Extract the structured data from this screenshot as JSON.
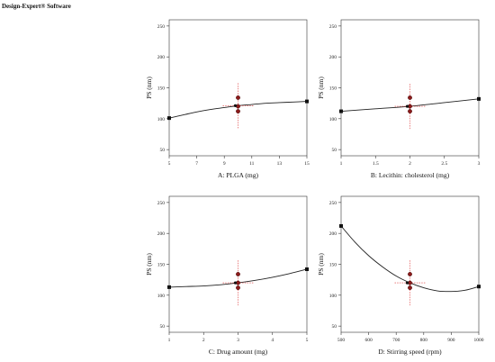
{
  "software_label": "Design-Expert® Software",
  "chart_data": [
    {
      "type": "line",
      "xlabel": "A: PLGA (mg)",
      "ylabel": "PS (nm)",
      "xlim": [
        5,
        15
      ],
      "ylim": [
        40,
        260
      ],
      "xticks": [
        5,
        7,
        9,
        11,
        13,
        15
      ],
      "yticks": [
        50,
        100,
        150,
        200,
        250
      ],
      "curve": {
        "x": [
          5,
          6,
          7,
          8,
          9,
          10,
          11,
          12,
          13,
          14,
          15
        ],
        "y": [
          101,
          106,
          111,
          115,
          118,
          121,
          123,
          125,
          126,
          127,
          128
        ]
      },
      "design_points": {
        "x": [
          10,
          10,
          10
        ],
        "y": [
          134,
          120,
          112
        ]
      },
      "center_point": {
        "x": 10,
        "y": 121
      },
      "endpoints": {
        "x": [
          5,
          15
        ],
        "y": [
          101,
          128
        ]
      }
    },
    {
      "type": "line",
      "xlabel": "B: Lecithin: cholesterol  (mg)",
      "ylabel": "PS (nm)",
      "xlim": [
        1,
        3
      ],
      "ylim": [
        40,
        260
      ],
      "xticks": [
        1,
        1.5,
        2,
        2.5,
        3
      ],
      "yticks": [
        50,
        100,
        150,
        200,
        250
      ],
      "curve": {
        "x": [
          1,
          1.5,
          2,
          2.5,
          3
        ],
        "y": [
          112,
          116,
          120,
          126,
          132
        ]
      },
      "design_points": {
        "x": [
          2,
          2,
          2
        ],
        "y": [
          134,
          120,
          112
        ]
      },
      "center_point": {
        "x": 2,
        "y": 120
      },
      "endpoints": {
        "x": [
          1,
          3
        ],
        "y": [
          112,
          132
        ]
      }
    },
    {
      "type": "line",
      "xlabel": "C: Drug amount (mg)",
      "ylabel": "PS (nm)",
      "xlim": [
        1,
        5
      ],
      "ylim": [
        40,
        260
      ],
      "xticks": [
        1,
        2,
        3,
        4,
        5
      ],
      "yticks": [
        50,
        100,
        150,
        200,
        250
      ],
      "curve": {
        "x": [
          1,
          1.5,
          2,
          2.5,
          3,
          3.5,
          4,
          4.5,
          5
        ],
        "y": [
          113,
          114,
          115,
          117,
          120,
          124,
          129,
          135,
          142
        ]
      },
      "design_points": {
        "x": [
          3,
          3,
          3
        ],
        "y": [
          134,
          120,
          112
        ]
      },
      "center_point": {
        "x": 3,
        "y": 120
      },
      "endpoints": {
        "x": [
          1,
          5
        ],
        "y": [
          113,
          142
        ]
      }
    },
    {
      "type": "line",
      "xlabel": "D: Stirring speed (rpm)",
      "ylabel": "PS (nm)",
      "xlim": [
        500,
        1000
      ],
      "ylim": [
        40,
        260
      ],
      "xticks": [
        500,
        600,
        700,
        800,
        900,
        1000
      ],
      "yticks": [
        50,
        100,
        150,
        200,
        250
      ],
      "curve": {
        "x": [
          500,
          550,
          600,
          650,
          700,
          750,
          800,
          850,
          900,
          950,
          1000
        ],
        "y": [
          212,
          186,
          164,
          146,
          131,
          120,
          112,
          107,
          106,
          108,
          114
        ]
      },
      "design_points": {
        "x": [
          750,
          750,
          750
        ],
        "y": [
          134,
          120,
          112
        ]
      },
      "center_point": {
        "x": 750,
        "y": 120
      },
      "endpoints": {
        "x": [
          500,
          1000
        ],
        "y": [
          212,
          114
        ]
      }
    }
  ]
}
